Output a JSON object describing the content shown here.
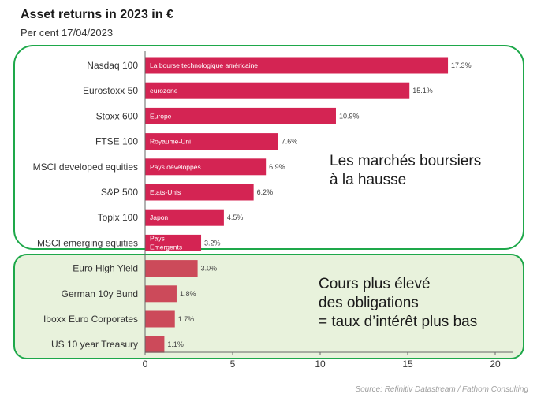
{
  "title": "Asset returns in 2023 in €",
  "subtitle": "Per cent 17/04/2023",
  "source": "Source: Refinitiv Datastream / Fathom Consulting",
  "callouts": {
    "top": "Les marchés boursiers\nà la hausse",
    "bottom": "Cours plus élevé\ndes obligations\n= taux d’intérêt plus bas"
  },
  "colors": {
    "equity_bar": "#d42453",
    "bond_bar": "#cc4a5a",
    "frame": "#1ea84a",
    "bond_panel": "#e8f2dc"
  },
  "chart_data": {
    "type": "bar",
    "orientation": "horizontal",
    "xlim": [
      0,
      21
    ],
    "xticks": [
      0,
      5,
      10,
      15,
      20
    ],
    "categories": [
      "Nasdaq 100",
      "Eurostoxx 50",
      "Stoxx 600",
      "FTSE 100",
      "MSCI developed equities",
      "S&P 500",
      "Topix 100",
      "MSCI emerging equities",
      "Euro High Yield",
      "German 10y Bund",
      "Iboxx Euro Corporates",
      "US 10 year Treasury"
    ],
    "values": [
      17.3,
      15.1,
      10.9,
      7.6,
      6.9,
      6.2,
      4.5,
      3.2,
      3.0,
      1.8,
      1.7,
      1.1
    ],
    "value_labels": [
      "17.3%",
      "15.1%",
      "10.9%",
      "7.6%",
      "6.9%",
      "6.2%",
      "4.5%",
      "3.2%",
      "3.0%",
      "1.8%",
      "1.7%",
      "1.1%"
    ],
    "group": [
      "equity",
      "equity",
      "equity",
      "equity",
      "equity",
      "equity",
      "equity",
      "equity",
      "bond",
      "bond",
      "bond",
      "bond"
    ],
    "bar_notes": [
      "La bourse technologique américaine",
      "eurozone",
      "Europe",
      "Royaume-Uni",
      "Pays développés",
      "Etats-Unis",
      "Japon",
      "Pays\nEmergents",
      "",
      "",
      "",
      ""
    ]
  }
}
